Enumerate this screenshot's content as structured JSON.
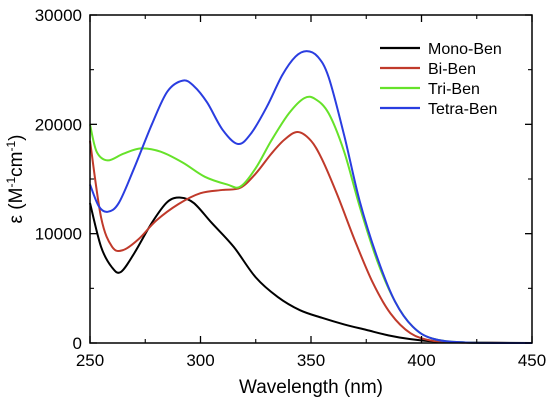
{
  "chart_data": {
    "type": "line",
    "xlabel": "Wavelength (nm)",
    "ylabel": {
      "base": "ε (M",
      "sup1": "-1",
      "mid": "cm",
      "sup2": "-1",
      "end": ")"
    },
    "xlim": [
      250,
      450
    ],
    "ylim": [
      0,
      30000
    ],
    "xticks": [
      250,
      300,
      350,
      400,
      450
    ],
    "yticks": [
      0,
      10000,
      20000,
      30000
    ],
    "grid": false,
    "legend_position": "top-right",
    "series": [
      {
        "name": "Mono-Ben",
        "color": "#000000",
        "points": [
          [
            250,
            12800
          ],
          [
            255,
            8800
          ],
          [
            260,
            6900
          ],
          [
            264,
            6500
          ],
          [
            270,
            8200
          ],
          [
            278,
            11000
          ],
          [
            285,
            12900
          ],
          [
            291,
            13300
          ],
          [
            297,
            12800
          ],
          [
            305,
            11000
          ],
          [
            315,
            8800
          ],
          [
            325,
            6000
          ],
          [
            335,
            4200
          ],
          [
            345,
            3000
          ],
          [
            355,
            2300
          ],
          [
            365,
            1700
          ],
          [
            375,
            1200
          ],
          [
            385,
            700
          ],
          [
            395,
            350
          ],
          [
            405,
            150
          ],
          [
            420,
            50
          ],
          [
            450,
            0
          ]
        ]
      },
      {
        "name": "Bi-Ben",
        "color": "#c03a2b",
        "points": [
          [
            250,
            18500
          ],
          [
            255,
            11500
          ],
          [
            260,
            8800
          ],
          [
            265,
            8500
          ],
          [
            272,
            9500
          ],
          [
            280,
            11200
          ],
          [
            290,
            12700
          ],
          [
            300,
            13700
          ],
          [
            310,
            14000
          ],
          [
            318,
            14200
          ],
          [
            325,
            15500
          ],
          [
            332,
            17300
          ],
          [
            338,
            18600
          ],
          [
            344,
            19300
          ],
          [
            350,
            18500
          ],
          [
            355,
            16800
          ],
          [
            362,
            13500
          ],
          [
            370,
            9300
          ],
          [
            378,
            5500
          ],
          [
            386,
            2700
          ],
          [
            395,
            900
          ],
          [
            405,
            200
          ],
          [
            420,
            30
          ],
          [
            450,
            0
          ]
        ]
      },
      {
        "name": "Tri-Ben",
        "color": "#66e22a",
        "points": [
          [
            250,
            20000
          ],
          [
            253,
            17500
          ],
          [
            258,
            16700
          ],
          [
            265,
            17300
          ],
          [
            273,
            17800
          ],
          [
            282,
            17500
          ],
          [
            292,
            16500
          ],
          [
            302,
            15200
          ],
          [
            312,
            14500
          ],
          [
            318,
            14300
          ],
          [
            325,
            16000
          ],
          [
            332,
            18500
          ],
          [
            340,
            21000
          ],
          [
            347,
            22400
          ],
          [
            352,
            22300
          ],
          [
            358,
            21000
          ],
          [
            365,
            17500
          ],
          [
            372,
            12500
          ],
          [
            380,
            7500
          ],
          [
            388,
            3800
          ],
          [
            396,
            1500
          ],
          [
            405,
            400
          ],
          [
            420,
            50
          ],
          [
            450,
            0
          ]
        ]
      },
      {
        "name": "Tetra-Ben",
        "color": "#2a3de0",
        "points": [
          [
            250,
            14500
          ],
          [
            254,
            12500
          ],
          [
            258,
            12000
          ],
          [
            263,
            12800
          ],
          [
            270,
            16000
          ],
          [
            278,
            20000
          ],
          [
            285,
            23000
          ],
          [
            292,
            24000
          ],
          [
            297,
            23500
          ],
          [
            303,
            22000
          ],
          [
            310,
            19500
          ],
          [
            317,
            18200
          ],
          [
            323,
            19200
          ],
          [
            330,
            21600
          ],
          [
            337,
            24500
          ],
          [
            343,
            26200
          ],
          [
            348,
            26700
          ],
          [
            353,
            26200
          ],
          [
            358,
            24300
          ],
          [
            365,
            19000
          ],
          [
            372,
            13000
          ],
          [
            380,
            7800
          ],
          [
            388,
            3800
          ],
          [
            396,
            1500
          ],
          [
            405,
            400
          ],
          [
            420,
            50
          ],
          [
            450,
            0
          ]
        ]
      }
    ]
  }
}
